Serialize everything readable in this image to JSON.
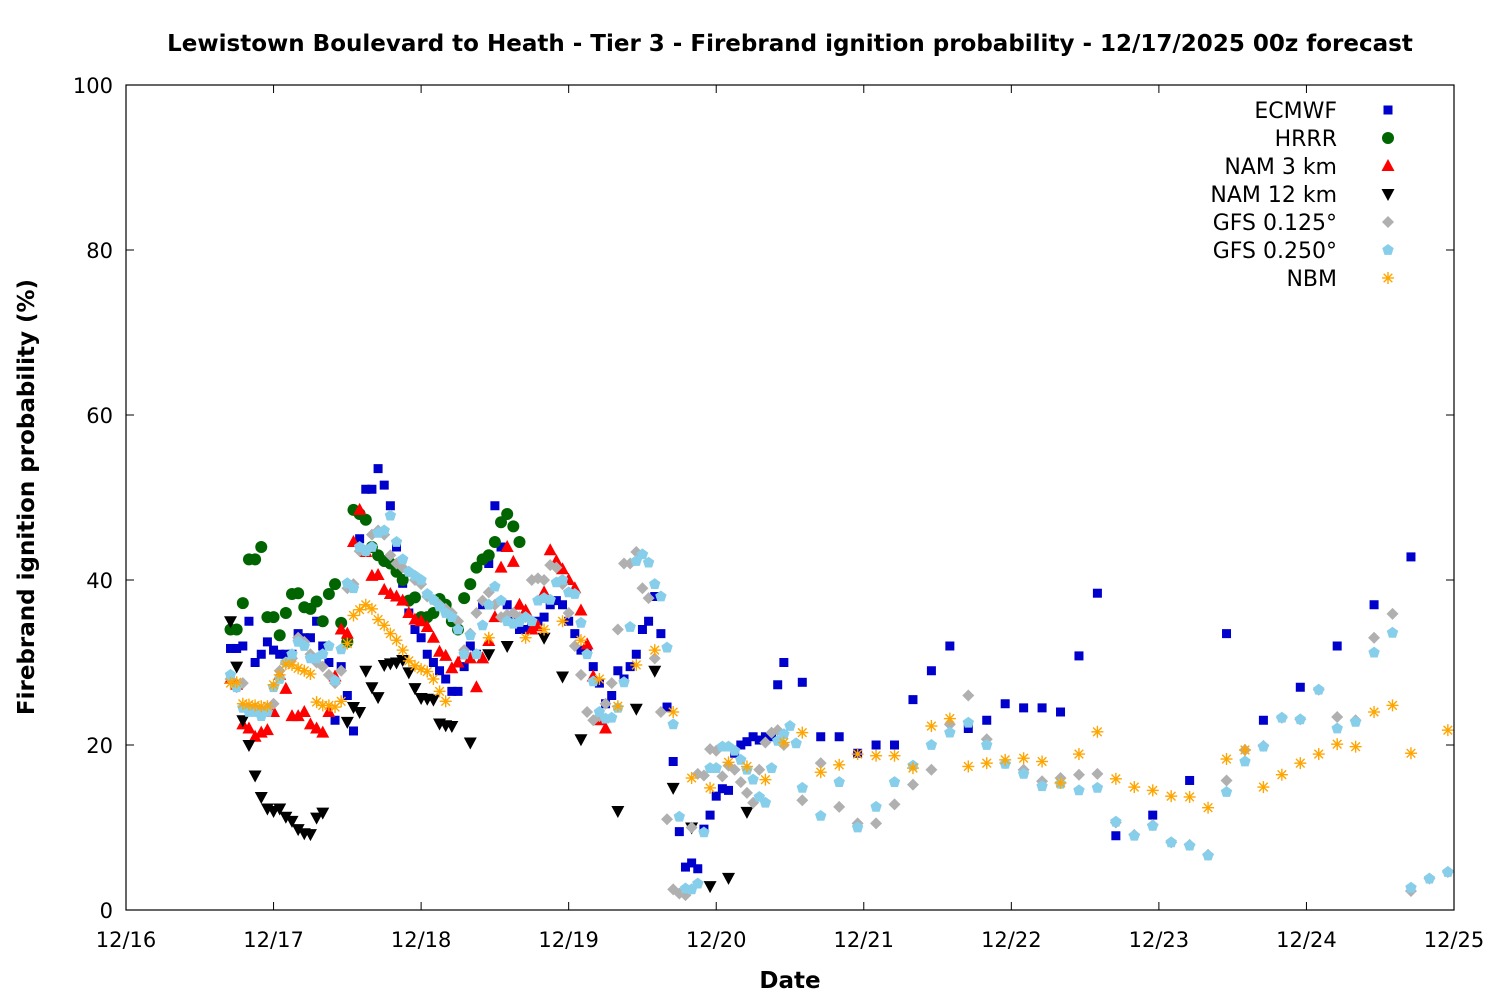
{
  "chart_data": {
    "type": "scatter",
    "title": "Lewistown Boulevard to Heath - Tier 3 - Firebrand ignition probability - 12/17/2025 00z forecast",
    "xlabel": "Date",
    "ylabel": "Firebrand ignition probability (%)",
    "x_unit": "hours since 12/16 00z",
    "xlim": [
      0,
      216
    ],
    "ylim": [
      0,
      100
    ],
    "x_ticks": [
      {
        "hour": 0,
        "label": "12/16"
      },
      {
        "hour": 24,
        "label": "12/17"
      },
      {
        "hour": 48,
        "label": "12/18"
      },
      {
        "hour": 72,
        "label": "12/19"
      },
      {
        "hour": 96,
        "label": "12/20"
      },
      {
        "hour": 120,
        "label": "12/21"
      },
      {
        "hour": 144,
        "label": "12/22"
      },
      {
        "hour": 168,
        "label": "12/23"
      },
      {
        "hour": 192,
        "label": "12/24"
      },
      {
        "hour": 216,
        "label": "12/25"
      }
    ],
    "y_ticks": [
      "0",
      "20",
      "40",
      "60",
      "80",
      "100"
    ],
    "grid": false,
    "legend_position": "top-right",
    "series": [
      {
        "name": "ECMWF",
        "marker": "square",
        "color": "#0000cc",
        "segments": [
          {
            "start": 17,
            "step": 1,
            "values": [
              31.7,
              31.7,
              32,
              35,
              30,
              31,
              32.5,
              31.5,
              31,
              31,
              31,
              33.5,
              33,
              33,
              35,
              32,
              30,
              23,
              29.5,
              26,
              21.7,
              45,
              51,
              51,
              53.5,
              51.5,
              49,
              44,
              39.6,
              36,
              34,
              33,
              31,
              30,
              29,
              28,
              26.5,
              26.5,
              29.5,
              32,
              31,
              37,
              42,
              49,
              44,
              37,
              35,
              34,
              34,
              34.5,
              35,
              35.5,
              37,
              37.5,
              37,
              35,
              33.5,
              31.5,
              31.5,
              29.5,
              27.5,
              25,
              26,
              29,
              28,
              29.5,
              31,
              34,
              35,
              38,
              33.5,
              24.6,
              18,
              9.5,
              5.2,
              5.7,
              5,
              9.8,
              11.5,
              13.8,
              14.7,
              14.5,
              19,
              20,
              20.4,
              21,
              20.6,
              21,
              21
            ]
          },
          {
            "start": 106,
            "step": 1,
            "values": [
              27.3,
              30
            ]
          },
          {
            "start": 110,
            "step": 3,
            "values": [
              27.6,
              21,
              21,
              19,
              20,
              20,
              25.5,
              29,
              32,
              22,
              23,
              25,
              24.5,
              24.5,
              24,
              30.8,
              38.4,
              9
            ]
          },
          {
            "start": 167,
            "step": 6,
            "values": [
              11.5,
              15.7,
              33.5,
              23,
              27,
              32,
              37,
              42.8
            ]
          }
        ]
      },
      {
        "name": "HRRR",
        "marker": "circle",
        "color": "#006400",
        "segments": [
          {
            "start": 17,
            "step": 1,
            "values": [
              34,
              34,
              37.2,
              42.5,
              42.5,
              44,
              35.5,
              35.5,
              33.3,
              36,
              38.3,
              38.4,
              36.7,
              36.5,
              37.4,
              35,
              38.3,
              39.5,
              34.8,
              32.5,
              48.5,
              48,
              47.3,
              44,
              43,
              42.3,
              42,
              41,
              40,
              37.5,
              37.9,
              35.5,
              35.5,
              36,
              37.7,
              37,
              35,
              34,
              37.8,
              39.5,
              41.5,
              42.5,
              43,
              44.6,
              47,
              48,
              46.5,
              44.6
            ]
          }
        ]
      },
      {
        "name": "NAM 3 km",
        "marker": "triangle-up",
        "color": "#ff0000",
        "segments": [
          {
            "start": 17,
            "step": 1,
            "values": [
              28,
              27.3,
              22.5,
              22,
              21,
              21.5,
              21.8,
              24,
              28.5,
              26.8,
              23.5,
              23.5,
              24,
              22.5,
              22,
              21.5,
              24,
              28.3,
              34,
              33.5,
              44.6,
              48.5,
              43.4,
              40.5,
              40.6,
              38.8,
              38.3,
              38,
              37.5,
              36,
              35.2,
              35,
              34.3,
              33,
              31.3,
              30.8,
              29.3,
              30,
              31,
              30.5,
              27,
              30.5,
              32.6,
              35.5,
              41.5,
              44,
              42.2,
              37,
              36.3,
              34,
              34.4,
              38.5,
              43.6,
              42.3,
              41.3,
              40,
              39,
              36.3,
              32.2,
              28.3,
              23,
              22
            ]
          }
        ]
      },
      {
        "name": "NAM 12 km",
        "marker": "triangle-down",
        "color": "#000000",
        "segments": [
          {
            "start": 17,
            "step": 1,
            "values": [
              35,
              29.5,
              23,
              20,
              16.3,
              13.7,
              12.3,
              12,
              12.3,
              11.3,
              10.8,
              9.8,
              9.3,
              9.2,
              11.2,
              11.8
            ]
          },
          {
            "start": 36,
            "step": 1,
            "values": [
              22.8,
              24.6,
              24,
              29,
              27,
              25.8,
              29.7,
              29.9,
              30,
              30.3,
              28.8,
              26.9,
              25.7,
              25.6,
              25.5,
              22.6,
              22.4,
              22.3
            ]
          },
          {
            "start": 56,
            "step": 3,
            "values": [
              20.3,
              31,
              32
            ]
          },
          {
            "start": 68,
            "step": 3,
            "values": [
              33,
              28.3,
              20.7
            ]
          },
          {
            "start": 80,
            "step": 3,
            "values": [
              12,
              24.4,
              29,
              14.8,
              10,
              2.9,
              3.9,
              11.9
            ]
          }
        ]
      },
      {
        "name": "GFS 0.125°",
        "marker": "diamond",
        "color": "#b0b0b0",
        "segments": [
          {
            "start": 17,
            "step": 1,
            "values": [
              28,
              27,
              27.5,
              24.5,
              24.5,
              24,
              24.5,
              25,
              29,
              30,
              30.5,
              33,
              32.5,
              31,
              30,
              29.5,
              28.5,
              27.5,
              29,
              39,
              39.5,
              43.5,
              43.5,
              45.5,
              46,
              45.5,
              43,
              42,
              41.5,
              41,
              40,
              39.5,
              38,
              37.6,
              37,
              36.5,
              36,
              35,
              31.5,
              33.5,
              36,
              37.5,
              38.5,
              37,
              35.5,
              35.8,
              36,
              35.5,
              35.5,
              40,
              40.2,
              40,
              41.8,
              41.5,
              39.5,
              36,
              32,
              28.5,
              24,
              23,
              23.5,
              25,
              27.5,
              34,
              42,
              42,
              43.4,
              39,
              37.8,
              30.5,
              24,
              11,
              2.5,
              2,
              1.8,
              10,
              16.5,
              16.3,
              19.5,
              19.3,
              16.2,
              17.5,
              17,
              15.5,
              14.2,
              13,
              17,
              20.3,
              21.5,
              21.8,
              20
            ]
          },
          {
            "start": 110,
            "step": 3,
            "values": [
              13.3,
              17.8,
              12.5,
              10.5,
              10.5,
              12.8,
              15.2,
              17,
              22.5,
              26,
              20.7,
              17.8,
              17,
              15.6,
              16,
              16.4,
              16.5,
              10.6,
              9.1,
              10.3,
              8.2,
              7.9,
              6.7,
              15.7,
              19.4,
              19.9,
              23.3,
              23.1,
              26.7,
              23.4,
              23,
              33,
              35.9,
              2.3,
              3.8,
              4.6
            ]
          }
        ]
      },
      {
        "name": "GFS 0.250°",
        "marker": "pentagon",
        "color": "#87ceeb",
        "segments": [
          {
            "start": 17,
            "step": 1,
            "values": [
              28.5,
              27,
              24.5,
              24,
              24,
              23.5,
              24,
              27,
              28,
              30,
              31,
              32.5,
              32,
              30.5,
              30.5,
              31,
              32,
              27.8,
              31.6,
              39.6,
              39,
              44,
              43.5,
              44,
              45.7,
              46,
              47.8,
              44.6,
              42.5,
              41,
              40.5,
              40,
              38.3,
              37.6,
              36.8,
              36,
              35.5,
              34,
              31,
              33.3,
              31,
              34.5,
              37,
              39.2,
              37.5,
              35,
              34.7,
              34.9,
              35.5,
              35,
              37.5,
              37.8,
              37.6,
              39.7,
              40,
              38.5,
              38.3,
              34.8,
              31,
              27.7,
              24,
              23.2,
              23.3,
              24.5,
              27.6,
              34.3,
              42.3,
              43.1,
              42.1,
              39.5,
              38,
              31.8,
              22.5,
              11.3,
              2.6,
              2.5,
              3.2,
              9.4,
              17.2,
              17.2,
              19.8,
              19.8,
              19.3,
              18.2,
              17,
              15.8,
              13.7,
              13,
              17.2,
              20.5,
              21.3,
              22.3,
              20.2
            ]
          },
          {
            "start": 110,
            "step": 3,
            "values": [
              14.8,
              11.4,
              15.5,
              10,
              12.5,
              15.5,
              17.5,
              20,
              21.5,
              22.7,
              20,
              17.7,
              16.5,
              15,
              15.3,
              14.5,
              14.8,
              10.7,
              9,
              10.2,
              8.2,
              7.8,
              6.6,
              14.3,
              18,
              19.8,
              23.3,
              23.1,
              26.7,
              22,
              22.8,
              31.2,
              33.6,
              2.7,
              3.8,
              4.6
            ]
          }
        ]
      },
      {
        "name": "NBM",
        "marker": "star",
        "color": "#ffa500",
        "segments": [
          {
            "start": 17,
            "step": 1,
            "values": [
              27.5,
              27.6,
              25,
              24.9,
              24.8,
              24.7,
              24.7,
              27.3,
              28.5,
              29.8,
              29.7,
              29.3,
              29,
              28.6,
              25.2,
              24.8,
              24.8,
              24.6,
              25.3,
              32.3,
              35.7,
              36.4,
              37,
              36.5,
              35.2,
              34.5,
              33.5,
              32.7,
              31.5,
              30.2,
              29.6,
              29.2,
              28.9,
              28,
              26.5,
              25.3
            ]
          },
          {
            "start": 59,
            "step": 6,
            "values": [
              33
            ]
          },
          {
            "start": 65,
            "step": 3,
            "values": [
              33,
              34,
              35,
              32.7,
              28,
              24.7,
              29.7,
              31.5,
              24,
              16,
              14.8,
              17.9,
              17.4,
              15.8,
              20.3,
              21.5,
              16.7,
              17.6,
              18.9,
              18.7,
              18.7,
              17.2,
              22.3,
              23.2,
              17.4,
              17.8,
              18.2,
              18.4,
              18,
              15.4,
              18.9,
              21.6,
              15.9,
              14.9,
              14.5,
              13.8,
              13.7,
              12.4,
              18.3,
              19.4,
              14.9,
              16.4,
              17.8,
              18.9,
              20.1,
              19.8,
              24,
              24.8,
              19
            ]
          },
          {
            "start": 215,
            "step": 3,
            "values": [
              21.8
            ]
          }
        ]
      }
    ]
  }
}
